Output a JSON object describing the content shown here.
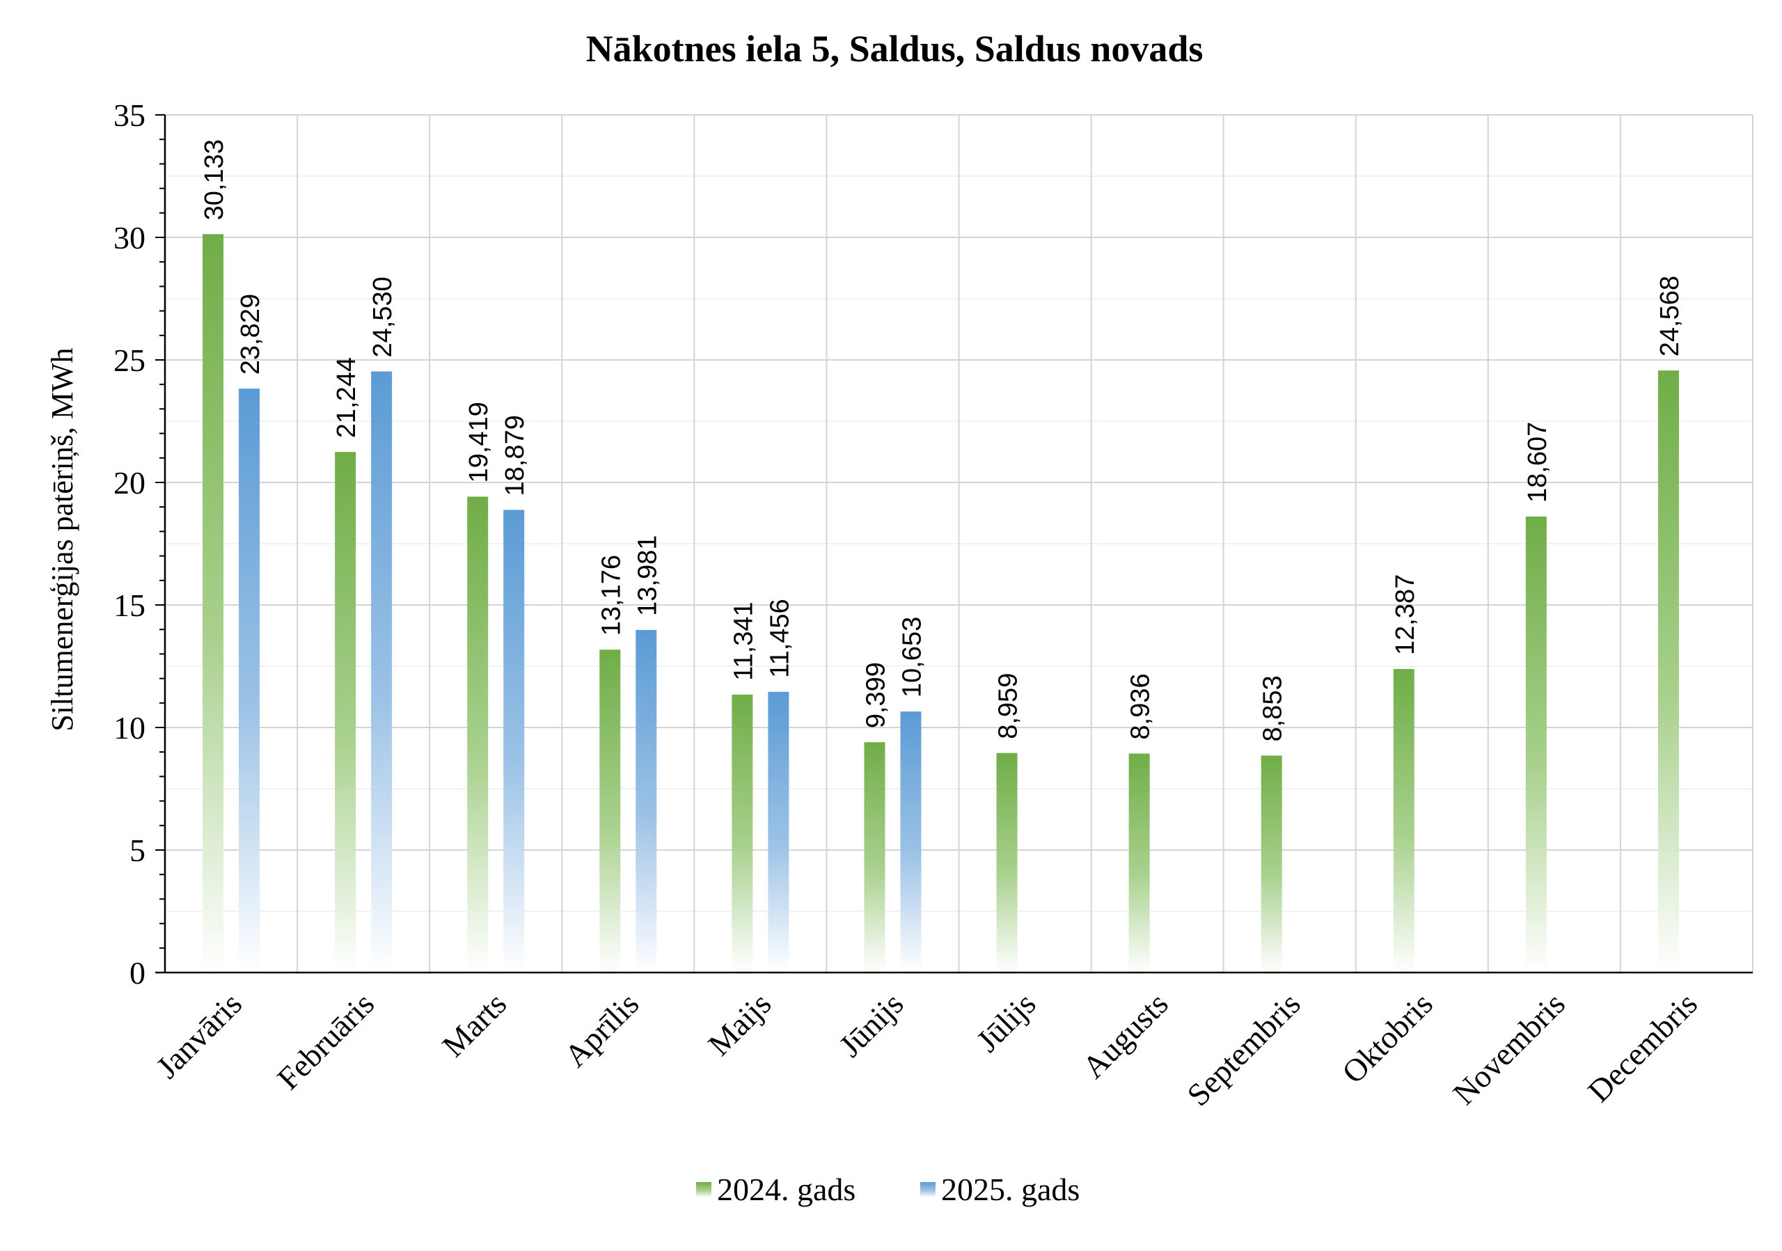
{
  "chart_data": {
    "type": "bar",
    "title": "Nākotnes iela 5, Saldus, Saldus novads",
    "xlabel": "",
    "ylabel": "Siltumenerģijas patēriņš, MWh",
    "ylim": [
      0,
      35
    ],
    "yticks": [
      0,
      5,
      10,
      15,
      20,
      25,
      30,
      35
    ],
    "yticklabels": [
      "0",
      "5",
      "10",
      "15",
      "20",
      "25",
      "30",
      "35"
    ],
    "grid": true,
    "legend_position": "bottom",
    "categories": [
      "Janvāris",
      "Februāris",
      "Marts",
      "Aprīlis",
      "Maijs",
      "Jūnijs",
      "Jūlijs",
      "Augusts",
      "Septembris",
      "Oktobris",
      "Novembris",
      "Decembris"
    ],
    "series": [
      {
        "name": "2024. gads",
        "color": "#70ad47",
        "values": [
          30.133,
          21.244,
          19.419,
          13.176,
          11.341,
          9.399,
          8.959,
          8.936,
          8.853,
          12.387,
          18.607,
          24.568
        ],
        "labels": [
          "30,133",
          "21,244",
          "19,419",
          "13,176",
          "11,341",
          "9,399",
          "8,959",
          "8,936",
          "8,853",
          "12,387",
          "18,607",
          "24,568"
        ]
      },
      {
        "name": "2025. gads",
        "color": "#5b9bd5",
        "values": [
          23.829,
          24.53,
          18.879,
          13.981,
          11.456,
          10.653,
          null,
          null,
          null,
          null,
          null,
          null
        ],
        "labels": [
          "23,829",
          "24,530",
          "18,879",
          "13,981",
          "11,456",
          "10,653",
          "",
          "",
          "",
          "",
          "",
          ""
        ]
      }
    ]
  }
}
